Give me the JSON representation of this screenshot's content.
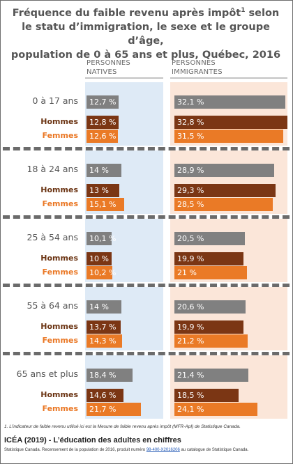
{
  "title": {
    "line1_pre": "Fréquence du faible revenu après impôt",
    "line1_sup": "1",
    "line1_post": " selon",
    "line2": "le statu d’immigration, le sexe et le groupe d’âge,",
    "line3": "population de 0 à 65 ans et plus, Québec, 2016"
  },
  "columns": {
    "natives": {
      "line1": "PERSONNES",
      "line2": "NATIVES"
    },
    "immigrants": {
      "line1": "PERSONNES",
      "line2": "IMMIGRANTES"
    }
  },
  "colors": {
    "total": "#808080",
    "hommes": "#7b3614",
    "femmes": "#ea7a26",
    "natives_bg": "#deeaf6",
    "immigrants_bg": "#fbe6d9",
    "separator": "#6b6b6b"
  },
  "chart_data": {
    "type": "bar",
    "unit": "%",
    "series_labels": [
      "Hommes",
      "Femmes"
    ],
    "columns": [
      "PERSONNES NATIVES",
      "PERSONNES IMMIGRANTES"
    ],
    "groups": [
      {
        "label": "0 à 17 ans",
        "rows": [
          {
            "key": "total",
            "label": "",
            "natives": 12.7,
            "immigrants": 32.1,
            "natives_text": "12,7 %",
            "immigrants_text": "32,1 %"
          },
          {
            "key": "hommes",
            "label": "Hommes",
            "natives": 12.8,
            "immigrants": 32.8,
            "natives_text": "12,8 %",
            "immigrants_text": "32,8 %"
          },
          {
            "key": "femmes",
            "label": "Femmes",
            "natives": 12.6,
            "immigrants": 31.5,
            "natives_text": "12,6 %",
            "immigrants_text": "31,5 %"
          }
        ]
      },
      {
        "label": "18 à 24 ans",
        "rows": [
          {
            "key": "total",
            "label": "",
            "natives": 14,
            "immigrants": 28.9,
            "natives_text": "14 %",
            "immigrants_text": "28,9 %"
          },
          {
            "key": "hommes",
            "label": "Hommes",
            "natives": 13,
            "immigrants": 29.3,
            "natives_text": "13 %",
            "immigrants_text": "29,3 %"
          },
          {
            "key": "femmes",
            "label": "Femmes",
            "natives": 15.1,
            "immigrants": 28.5,
            "natives_text": "15,1 %",
            "immigrants_text": "28,5 %"
          }
        ]
      },
      {
        "label": "25 à 54 ans",
        "rows": [
          {
            "key": "total",
            "label": "",
            "natives": 10.1,
            "immigrants": 20.5,
            "natives_text": "10,1 %",
            "immigrants_text": "20,5 %"
          },
          {
            "key": "hommes",
            "label": "Hommes",
            "natives": 10,
            "immigrants": 19.9,
            "natives_text": "10 %",
            "immigrants_text": "19,9 %"
          },
          {
            "key": "femmes",
            "label": "Femmes",
            "natives": 10.2,
            "immigrants": 21,
            "natives_text": "10,2 %",
            "immigrants_text": "21 %"
          }
        ]
      },
      {
        "label": "55 à 64 ans",
        "rows": [
          {
            "key": "total",
            "label": "",
            "natives": 14,
            "immigrants": 20.6,
            "natives_text": "14 %",
            "immigrants_text": "20,6 %"
          },
          {
            "key": "hommes",
            "label": "Hommes",
            "natives": 13.7,
            "immigrants": 19.9,
            "natives_text": "13,7 %",
            "immigrants_text": "19,9 %"
          },
          {
            "key": "femmes",
            "label": "Femmes",
            "natives": 14.3,
            "immigrants": 21.2,
            "natives_text": "14,3 %",
            "immigrants_text": "21,2 %"
          }
        ]
      },
      {
        "label": "65 ans et plus",
        "rows": [
          {
            "key": "total",
            "label": "",
            "natives": 18.4,
            "immigrants": 21.4,
            "natives_text": "18,4 %",
            "immigrants_text": "21,4 %"
          },
          {
            "key": "hommes",
            "label": "Hommes",
            "natives": 14.6,
            "immigrants": 18.5,
            "natives_text": "14,6 %",
            "immigrants_text": "18,5 %"
          },
          {
            "key": "femmes",
            "label": "Femmes",
            "natives": 21.7,
            "immigrants": 24.1,
            "natives_text": "21,7 %",
            "immigrants_text": "24,1 %"
          }
        ]
      }
    ]
  },
  "footnote": "1. L’indicateur de faible revenu utilisé ici est la Mesure de faible revenu après impôt (MFR-ApI) de Statistique Canada.",
  "brand": "ICÉA (2019) - L’éducation des adultes en chiffres",
  "source": {
    "pre": "Statistique Canada. Recensement de la population de 2016, produit numéro ",
    "link": "98-400-X2016206",
    "post": " au catalogue de Statistique Canada."
  }
}
